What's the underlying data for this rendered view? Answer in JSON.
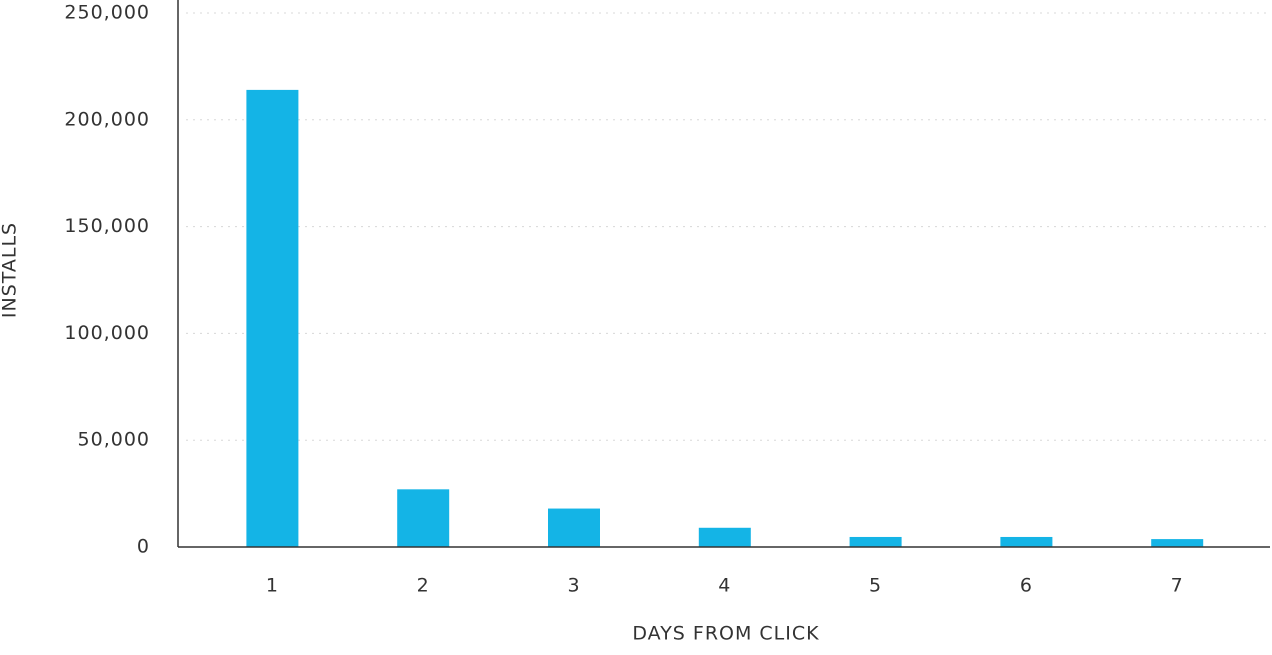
{
  "chart_data": {
    "type": "bar",
    "x_label": "DAYS FROM CLICK",
    "y_label": "INSTALLS",
    "categories": [
      "1",
      "2",
      "3",
      "4",
      "5",
      "6",
      "7"
    ],
    "values": [
      214000,
      27000,
      18000,
      9000,
      4700,
      4700,
      3700
    ],
    "color": "#14b4e6",
    "ylim": [
      0,
      250000
    ],
    "yticks": [
      0,
      {
        "value": 50000,
        "label": "50,000"
      },
      {
        "value": 100000,
        "label": "100,000"
      },
      {
        "value": 150000,
        "label": "150,000"
      },
      {
        "value": 200000,
        "label": "200,000"
      },
      {
        "value": 250000,
        "label": "250,000"
      }
    ],
    "grid": true
  }
}
